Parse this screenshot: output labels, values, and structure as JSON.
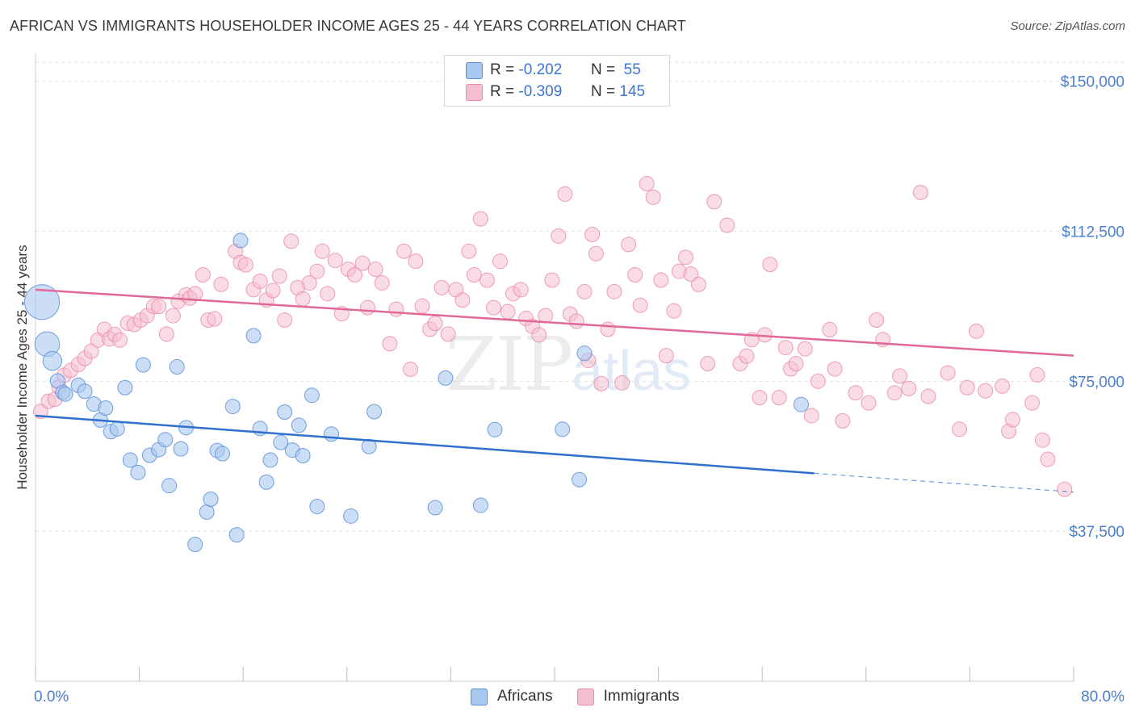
{
  "header": {
    "title": "AFRICAN VS IMMIGRANTS HOUSEHOLDER INCOME AGES 25 - 44 YEARS CORRELATION CHART",
    "source": "Source: ZipAtlas.com"
  },
  "watermark": {
    "part1": "ZIP",
    "part2": "atlas"
  },
  "legend_top": {
    "rows": [
      {
        "r_label": "R =",
        "r_value": "-0.202",
        "n_label": "N =",
        "n_value": "55"
      },
      {
        "r_label": "R =",
        "r_value": "-0.309",
        "n_label": "N =",
        "n_value": "145"
      }
    ]
  },
  "legend_bottom": {
    "items": [
      "Africans",
      "Immigrants"
    ]
  },
  "colors": {
    "africans_fill": "#a9c8f0",
    "africans_stroke": "#5b8fd8",
    "africans_line": "#2f6fce",
    "immigrants_fill": "#f6bfd0",
    "immigrants_stroke": "#e987a8",
    "immigrants_line": "#e0699a",
    "grid": "#e2e2e2",
    "axis_text": "#4a7fd0"
  },
  "chart_data": {
    "type": "scatter",
    "title": "AFRICAN VS IMMIGRANTS HOUSEHOLDER INCOME AGES 25 - 44 YEARS CORRELATION CHART",
    "xlabel": "",
    "ylabel": "Householder Income Ages 25 - 44 years",
    "xlim": [
      0,
      80
    ],
    "ylim": [
      0,
      157000
    ],
    "x_tick_labels": [
      "0.0%",
      "80.0%"
    ],
    "y_ticks": [
      37500,
      75000,
      112500,
      150000
    ],
    "y_tick_labels": [
      "$37,500",
      "$75,000",
      "$112,500",
      "$150,000"
    ],
    "grid": true,
    "legend_position": "top-center",
    "series": [
      {
        "name": "Africans",
        "r": -0.202,
        "n": 55,
        "trend": {
          "x0": 0,
          "y0": 66400,
          "x1": 60,
          "y1": 52000,
          "dash_to_x": 80,
          "dash_to_y": 47300
        },
        "points": [
          [
            0.5,
            94800,
            2.4
          ],
          [
            0.9,
            84300,
            1.7
          ],
          [
            1.3,
            80100,
            1.3
          ],
          [
            1.7,
            75100,
            1.0
          ],
          [
            2.1,
            72200,
            1.0
          ],
          [
            2.3,
            71800,
            1.0
          ],
          [
            3.3,
            74000,
            1.0
          ],
          [
            3.8,
            72500,
            1.0
          ],
          [
            4.5,
            69300,
            1.0
          ],
          [
            5.0,
            65300,
            1.0
          ],
          [
            5.4,
            68300,
            1.0
          ],
          [
            5.8,
            62400,
            1.0
          ],
          [
            6.3,
            63100,
            1.0
          ],
          [
            6.9,
            73400,
            1.0
          ],
          [
            7.3,
            55300,
            1.0
          ],
          [
            7.9,
            52200,
            1.0
          ],
          [
            8.3,
            79100,
            1.0
          ],
          [
            8.8,
            56500,
            1.0
          ],
          [
            9.5,
            57900,
            1.0
          ],
          [
            10.0,
            60400,
            1.0
          ],
          [
            10.3,
            48900,
            1.0
          ],
          [
            10.9,
            78600,
            1.0
          ],
          [
            11.2,
            58100,
            1.0
          ],
          [
            11.6,
            63400,
            1.0
          ],
          [
            12.3,
            34200,
            1.0
          ],
          [
            13.2,
            42300,
            1.0
          ],
          [
            13.5,
            45500,
            1.0
          ],
          [
            14.0,
            57700,
            1.0
          ],
          [
            14.4,
            56900,
            1.0
          ],
          [
            15.2,
            68700,
            1.0
          ],
          [
            15.5,
            36600,
            1.0
          ],
          [
            15.8,
            110200,
            1.0
          ],
          [
            16.8,
            86400,
            1.0
          ],
          [
            17.3,
            63200,
            1.0
          ],
          [
            17.8,
            49800,
            1.0
          ],
          [
            18.1,
            55300,
            1.0
          ],
          [
            18.9,
            59700,
            1.0
          ],
          [
            19.2,
            67300,
            1.0
          ],
          [
            19.8,
            57800,
            1.0
          ],
          [
            20.3,
            64000,
            1.0
          ],
          [
            20.6,
            56400,
            1.0
          ],
          [
            21.3,
            71500,
            1.0
          ],
          [
            21.7,
            43700,
            1.0
          ],
          [
            22.8,
            61800,
            1.0
          ],
          [
            24.3,
            41300,
            1.0
          ],
          [
            25.7,
            58700,
            1.0
          ],
          [
            26.1,
            67400,
            1.0
          ],
          [
            30.8,
            43400,
            1.0
          ],
          [
            31.6,
            75800,
            1.0
          ],
          [
            34.3,
            44000,
            1.0
          ],
          [
            35.4,
            62900,
            1.0
          ],
          [
            40.6,
            63000,
            1.0
          ],
          [
            41.9,
            50400,
            1.0
          ],
          [
            42.3,
            82000,
            1.0
          ],
          [
            59.0,
            69200,
            1.0
          ]
        ]
      },
      {
        "name": "Immigrants",
        "r": -0.309,
        "n": 145,
        "trend": {
          "x0": 0,
          "y0": 97900,
          "x1": 80,
          "y1": 81400
        },
        "points": [
          [
            0.4,
            67500
          ],
          [
            1.0,
            70000
          ],
          [
            1.5,
            70500
          ],
          [
            1.8,
            73600
          ],
          [
            2.2,
            76500
          ],
          [
            2.7,
            77700
          ],
          [
            3.3,
            79200
          ],
          [
            3.8,
            80700
          ],
          [
            4.3,
            82500
          ],
          [
            4.8,
            85300
          ],
          [
            5.3,
            88000
          ],
          [
            5.7,
            85600
          ],
          [
            6.1,
            86700
          ],
          [
            6.5,
            85300
          ],
          [
            7.1,
            89500
          ],
          [
            7.6,
            89200
          ],
          [
            8.1,
            90300
          ],
          [
            8.6,
            91400
          ],
          [
            9.1,
            93700
          ],
          [
            9.5,
            93700
          ],
          [
            10.1,
            86800
          ],
          [
            10.6,
            91400
          ],
          [
            11.0,
            95000
          ],
          [
            11.6,
            96600
          ],
          [
            11.9,
            95800
          ],
          [
            12.3,
            96900
          ],
          [
            12.9,
            101600
          ],
          [
            13.3,
            90300
          ],
          [
            13.8,
            90600
          ],
          [
            14.3,
            99200
          ],
          [
            15.4,
            107500
          ],
          [
            15.8,
            104700
          ],
          [
            16.2,
            104100
          ],
          [
            16.8,
            97900
          ],
          [
            17.3,
            100000
          ],
          [
            17.8,
            95300
          ],
          [
            18.3,
            97700
          ],
          [
            18.8,
            101300
          ],
          [
            19.2,
            90300
          ],
          [
            19.7,
            110000
          ],
          [
            20.2,
            98400
          ],
          [
            20.6,
            95600
          ],
          [
            21.1,
            99600
          ],
          [
            21.7,
            102500
          ],
          [
            22.1,
            107500
          ],
          [
            22.5,
            96900
          ],
          [
            23.1,
            105200
          ],
          [
            23.6,
            91900
          ],
          [
            24.1,
            103000
          ],
          [
            24.6,
            101600
          ],
          [
            25.2,
            104500
          ],
          [
            25.6,
            93400
          ],
          [
            26.2,
            103000
          ],
          [
            26.7,
            99600
          ],
          [
            27.3,
            84400
          ],
          [
            27.8,
            93000
          ],
          [
            28.4,
            107500
          ],
          [
            28.9,
            78000
          ],
          [
            29.3,
            105000
          ],
          [
            29.8,
            93800
          ],
          [
            30.4,
            88000
          ],
          [
            30.8,
            89500
          ],
          [
            31.3,
            98400
          ],
          [
            31.8,
            86800
          ],
          [
            32.4,
            97900
          ],
          [
            32.9,
            95300
          ],
          [
            33.4,
            107500
          ],
          [
            33.8,
            101600
          ],
          [
            34.3,
            115600
          ],
          [
            34.8,
            100300
          ],
          [
            35.3,
            93400
          ],
          [
            35.8,
            105000
          ],
          [
            36.4,
            92400
          ],
          [
            36.8,
            96900
          ],
          [
            37.4,
            97900
          ],
          [
            37.8,
            90700
          ],
          [
            38.3,
            88700
          ],
          [
            38.8,
            86600
          ],
          [
            39.3,
            91400
          ],
          [
            39.8,
            100300
          ],
          [
            40.3,
            111300
          ],
          [
            40.8,
            121800
          ],
          [
            41.2,
            91800
          ],
          [
            41.7,
            90000
          ],
          [
            42.3,
            97400
          ],
          [
            42.6,
            80200
          ],
          [
            42.9,
            111700
          ],
          [
            43.2,
            106900
          ],
          [
            43.6,
            74400
          ],
          [
            44.1,
            88000
          ],
          [
            44.6,
            97400
          ],
          [
            45.2,
            74600
          ],
          [
            45.7,
            109200
          ],
          [
            46.2,
            101600
          ],
          [
            46.6,
            94000
          ],
          [
            47.1,
            124400
          ],
          [
            47.6,
            121000
          ],
          [
            48.2,
            100300
          ],
          [
            48.6,
            81400
          ],
          [
            49.2,
            92600
          ],
          [
            49.6,
            102500
          ],
          [
            50.1,
            106000
          ],
          [
            50.5,
            101800
          ],
          [
            51.1,
            99200
          ],
          [
            51.8,
            79400
          ],
          [
            52.3,
            119900
          ],
          [
            53.3,
            114000
          ],
          [
            54.3,
            79400
          ],
          [
            54.8,
            81300
          ],
          [
            55.2,
            85400
          ],
          [
            55.8,
            70900
          ],
          [
            56.2,
            86600
          ],
          [
            56.6,
            104200
          ],
          [
            57.3,
            70900
          ],
          [
            57.8,
            83400
          ],
          [
            58.2,
            78100
          ],
          [
            58.6,
            79400
          ],
          [
            59.3,
            83100
          ],
          [
            59.8,
            66400
          ],
          [
            60.3,
            75000
          ],
          [
            61.2,
            87900
          ],
          [
            61.6,
            78100
          ],
          [
            62.2,
            65100
          ],
          [
            63.2,
            72100
          ],
          [
            64.2,
            69600
          ],
          [
            64.8,
            90300
          ],
          [
            65.3,
            85400
          ],
          [
            66.2,
            72100
          ],
          [
            66.6,
            76300
          ],
          [
            67.3,
            73200
          ],
          [
            68.2,
            122200
          ],
          [
            68.8,
            71200
          ],
          [
            70.3,
            77100
          ],
          [
            71.2,
            63000
          ],
          [
            71.8,
            73400
          ],
          [
            72.5,
            87500
          ],
          [
            73.2,
            72600
          ],
          [
            74.5,
            73800
          ],
          [
            75.0,
            62500
          ],
          [
            75.3,
            65400
          ],
          [
            76.8,
            69600
          ],
          [
            77.2,
            76600
          ],
          [
            77.6,
            60300
          ],
          [
            78.0,
            55500
          ],
          [
            79.3,
            48000
          ]
        ]
      }
    ]
  }
}
